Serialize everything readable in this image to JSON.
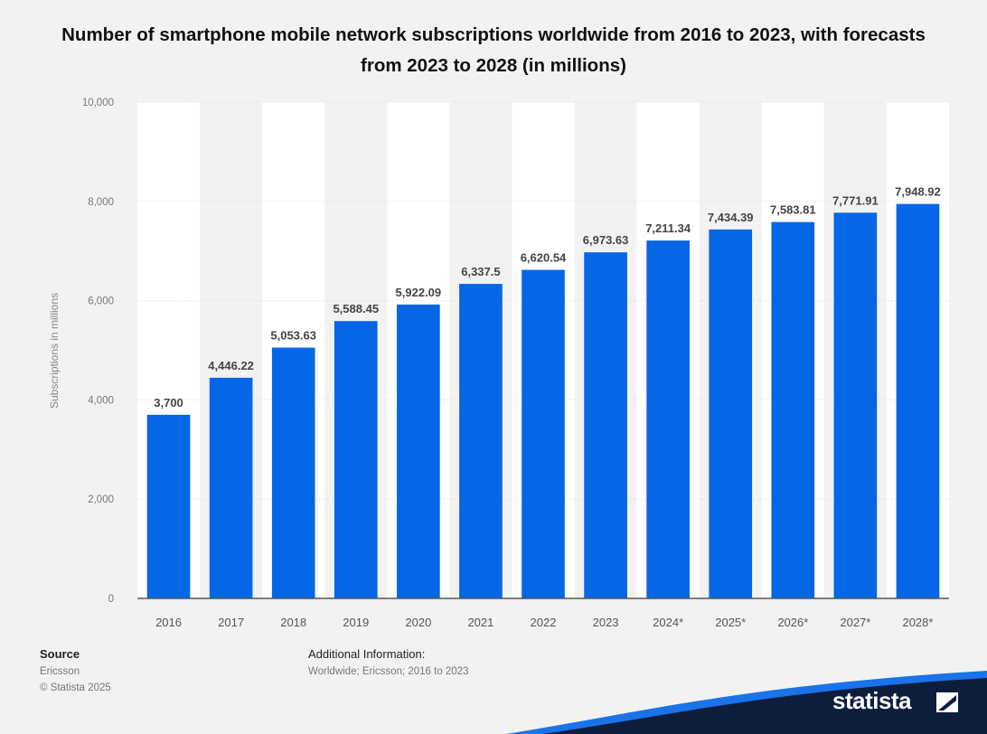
{
  "colors": {
    "bar": "#0566e6",
    "background": "#f2f2f2",
    "band": "#ffffff",
    "brand_dark": "#0d1e3d",
    "brand_accent": "#1a73e8"
  },
  "chart_data": {
    "type": "bar",
    "title": "Number of smartphone mobile network subscriptions worldwide from 2016 to 2023, with forecasts from 2023 to 2028 (in millions)",
    "xlabel": "",
    "ylabel": "Subscriptions in millions",
    "ylim": [
      0,
      10000
    ],
    "grid": true,
    "yticks": [
      {
        "value": 0,
        "label": "0"
      },
      {
        "value": 2000,
        "label": "2,000"
      },
      {
        "value": 4000,
        "label": "4,000"
      },
      {
        "value": 6000,
        "label": "6,000"
      },
      {
        "value": 8000,
        "label": "8,000"
      },
      {
        "value": 10000,
        "label": "10,000"
      }
    ],
    "categories": [
      "2016",
      "2017",
      "2018",
      "2019",
      "2020",
      "2021",
      "2022",
      "2023",
      "2024*",
      "2025*",
      "2026*",
      "2027*",
      "2028*"
    ],
    "values": [
      3700,
      4446.22,
      5053.63,
      5588.45,
      5922.09,
      6337.5,
      6620.54,
      6973.63,
      7211.34,
      7434.39,
      7583.81,
      7771.91,
      7948.92
    ],
    "value_labels": [
      "3,700",
      "4,446.22",
      "5,053.63",
      "5,588.45",
      "5,922.09",
      "6,337.5",
      "6,620.54",
      "6,973.63",
      "7,211.34",
      "7,434.39",
      "7,583.81",
      "7,771.91",
      "7,948.92"
    ]
  },
  "footer": {
    "source_heading": "Source",
    "source_name": "Ericsson",
    "copyright": "© Statista 2025",
    "additional_heading": "Additional Information:",
    "additional_text": "Worldwide; Ericsson; 2016 to 2023"
  },
  "brand": {
    "name": "statista",
    "icon": "statista-logo-icon"
  }
}
